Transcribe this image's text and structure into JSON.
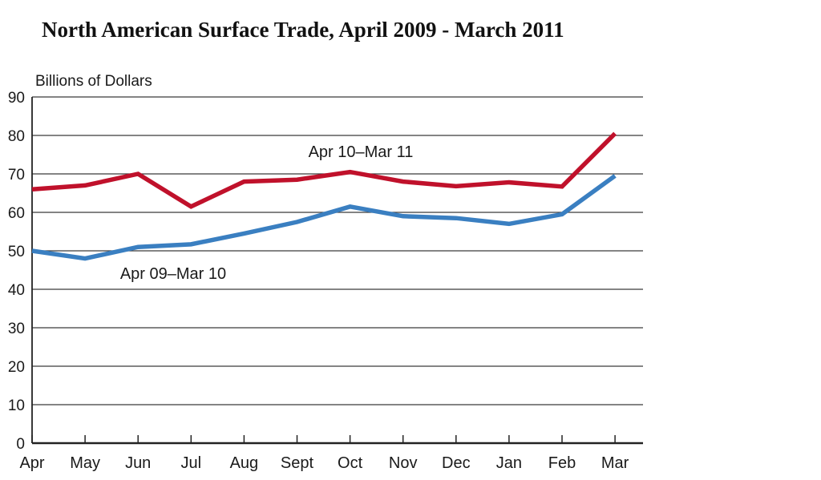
{
  "title": "North American Surface Trade, April 2009 - March 2011",
  "chart_data": {
    "type": "line",
    "title": "North American Surface Trade, April 2009 - March 2011",
    "ylabel": "Billions of Dollars",
    "xlabel": "",
    "ylim": [
      0,
      90
    ],
    "yticks": [
      0,
      10,
      20,
      30,
      40,
      50,
      60,
      70,
      80,
      90
    ],
    "grid": "horizontal",
    "categories": [
      "Apr",
      "May",
      "Jun",
      "Jul",
      "Aug",
      "Sept",
      "Oct",
      "Nov",
      "Dec",
      "Jan",
      "Feb",
      "Mar"
    ],
    "series": [
      {
        "name": "Apr 10–Mar 11",
        "color": "#c0112b",
        "values": [
          66,
          67,
          70,
          61.5,
          68,
          68.5,
          70.5,
          68,
          66.8,
          67.8,
          66.7,
          80.5
        ]
      },
      {
        "name": "Apr 09–Mar 10",
        "color": "#3a7fc1",
        "values": [
          50,
          48,
          51,
          51.7,
          54.5,
          57.5,
          61.5,
          59,
          58.5,
          57,
          59.5,
          69.5
        ]
      }
    ]
  }
}
